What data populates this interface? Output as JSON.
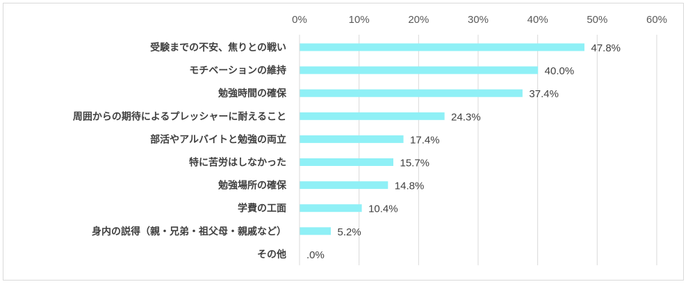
{
  "chart_data": {
    "type": "bar",
    "orientation": "horizontal",
    "categories": [
      "受験までの不安、焦りとの戦い",
      "モチベーションの維持",
      "勉強時間の確保",
      "周囲からの期待によるプレッシャーに耐えること",
      "部活やアルバイトと勉強の両立",
      "特に苦労はしなかった",
      "勉強場所の確保",
      "学費の工面",
      "身内の説得（親・兄弟・祖父母・親戚など）",
      "その他"
    ],
    "values": [
      47.8,
      40.0,
      37.4,
      24.3,
      17.4,
      15.7,
      14.8,
      10.4,
      5.2,
      0.0
    ],
    "data_labels": [
      "47.8%",
      "40.0%",
      "37.4%",
      "24.3%",
      "17.4%",
      "15.7%",
      "14.8%",
      "10.4%",
      "5.2%",
      ".0%"
    ],
    "xlim": [
      0,
      60
    ],
    "x_ticks": [
      "0%",
      "10%",
      "20%",
      "30%",
      "40%",
      "50%",
      "60%"
    ],
    "axis_position": "top",
    "grid": true,
    "legend": "none",
    "bar_color": "#8ff0f6",
    "grid_color": "#d9d9d9"
  }
}
